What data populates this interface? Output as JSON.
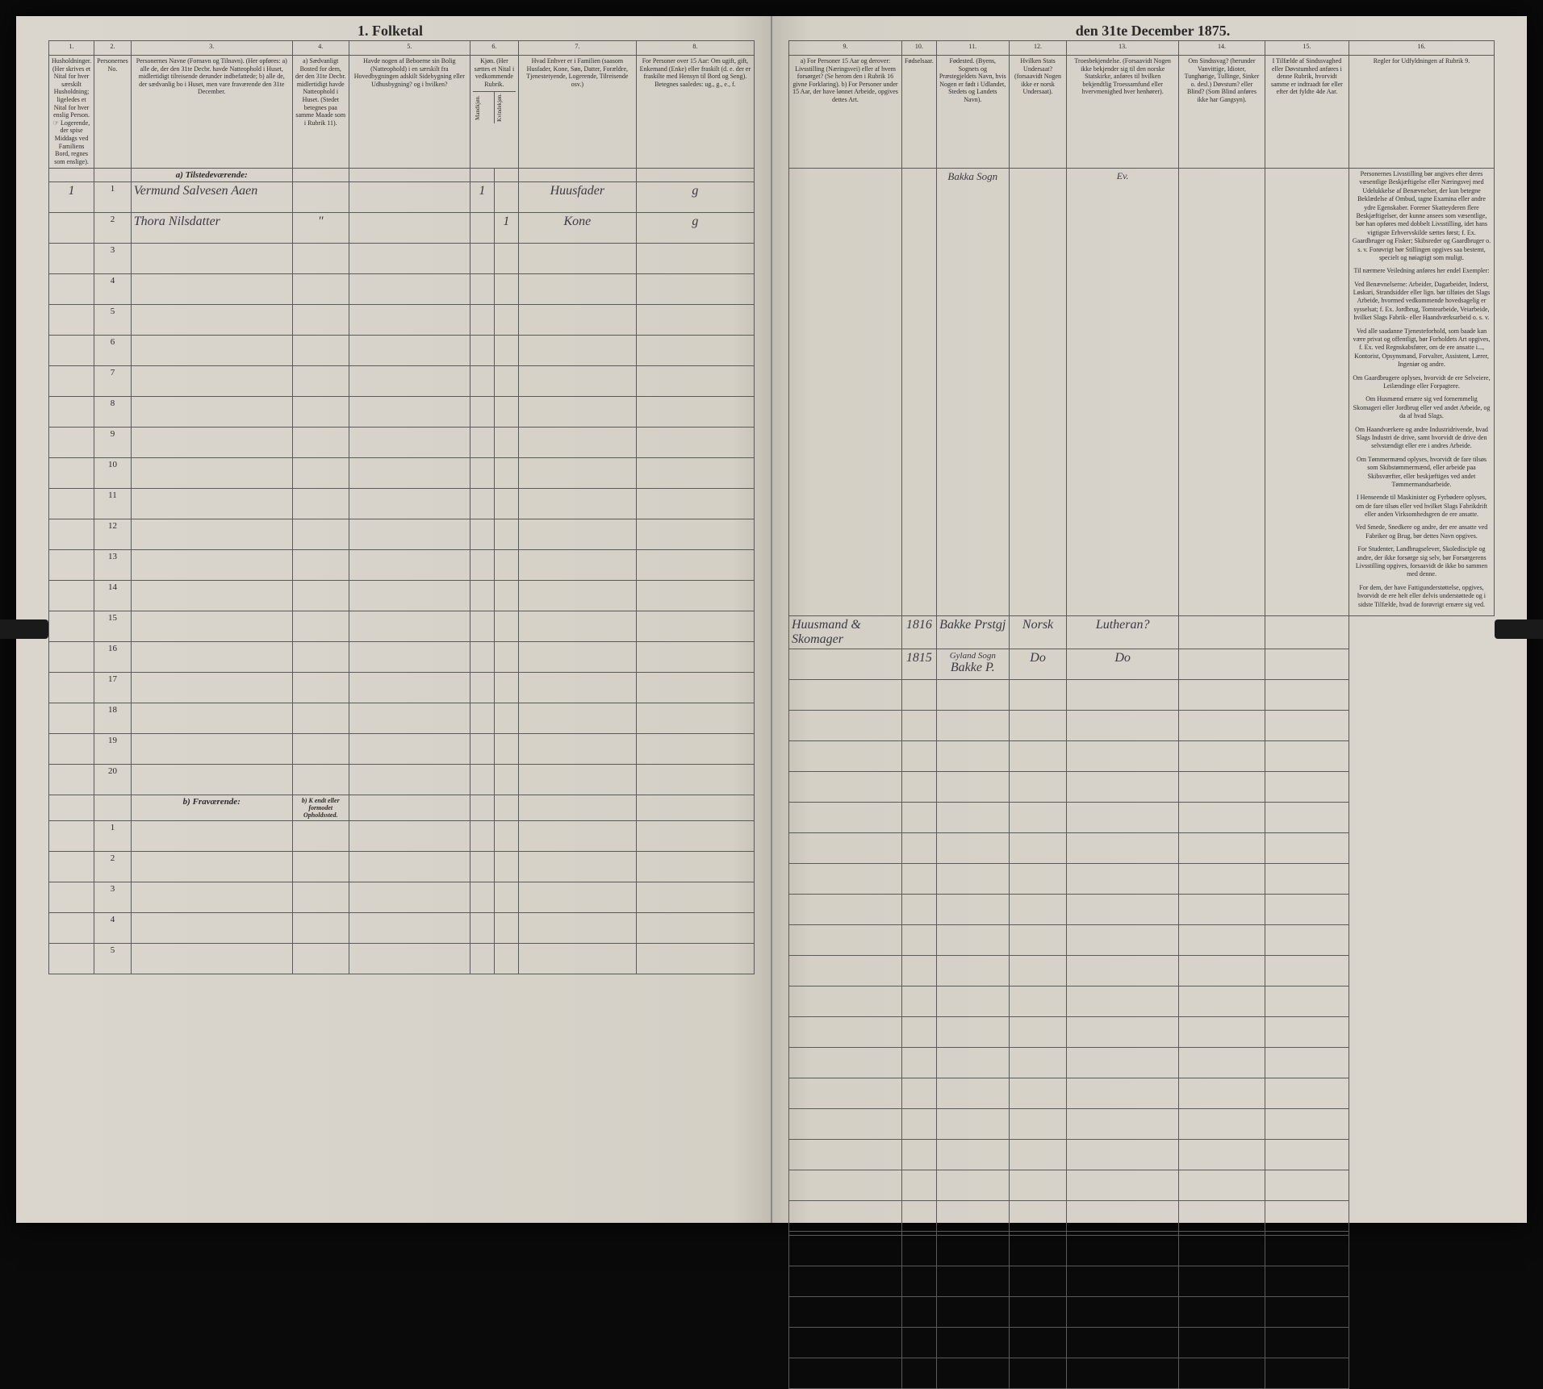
{
  "title": {
    "left": "1. Folketal",
    "right": "den 31te December 1875."
  },
  "columns_left": {
    "c1": {
      "num": "1.",
      "header": "Husholdninger.\n(Her skrives et Nital for hver særskilt Husholdning; ligeledes et Nital for hver enslig Person.\n☞ Logerende, der spise Middags ved Familiens Bord, regnes som enslige)."
    },
    "c2": {
      "num": "2.",
      "header": "Personernes No."
    },
    "c3": {
      "num": "3.",
      "header": "Personernes Navne (Fornavn og Tilnavn).\n(Her opføres:\na) alle de, der den 31te Decbr. havde Natteophold i Huset, midlertidigt tilreisende derunder indbefattede;\nb) alle de, der sædvanlig bo i Huset, men vare fraværende den 31te December."
    },
    "c4": {
      "num": "4.",
      "header": "a) Sædvanligt Bosted for dem, der den 31te Decbr. midlertidigt havde Natteophold i Huset.\n(Stedet betegnes paa samme Maade som i Rubrik 11)."
    },
    "c5": {
      "num": "5.",
      "header": "Havde nogen af Beboerne sin Bolig (Natteophold) i en særskilt fra Hovedbygningen adskilt Sidebygning eller Udhusbygning? og i hvilken?"
    },
    "c6": {
      "num": "6.",
      "header_top": "Kjøn.\n(Her sættes et Nital i vedkommende Rubrik.",
      "sub_a": "Mandkjøn.",
      "sub_b": "Kvindekjøn."
    },
    "c7": {
      "num": "7.",
      "header": "Hvad Enhver er i Familien\n(saasom Husfader, Kone, Søn, Datter, Forældre, Tjenestetyende, Logerende, Tilreisende osv.)"
    },
    "c8": {
      "num": "8.",
      "header": "For Personer over 15 Aar: Om ugift, gift, Enkemand (Enke) eller fraskilt (d. e. der er fraskilte med Hensyn til Bord og Seng).\nBetegnes saaledes: ug., g., e., f."
    }
  },
  "columns_right": {
    "c9": {
      "num": "9.",
      "header": "a) For Personer 15 Aar og derover: Livsstilling (Næringsvei) eller af hvem forsørget? (Se herom den i Rubrik 16 givne Forklaring).\nb) For Personer under 15 Aar, der have lønnet Arbeide, opgives dettes Art."
    },
    "c10": {
      "num": "10.",
      "header": "Fødselsaar."
    },
    "c11": {
      "num": "11.",
      "header": "Fødested.\n(Byens, Sognets og Præstegjeldets Navn, hvis Nogen er født i Udlandet, Stedets og Landets Navn)."
    },
    "c12": {
      "num": "12.",
      "header": "Hvilken Stats Undersaat?\n(forsaavidt Nogen ikke er norsk Undersaat)."
    },
    "c13": {
      "num": "13.",
      "header": "Troesbekjendelse.\n(Forsaavidt Nogen ikke bekjender sig til den norske Statskirke, anføres til hvilken bekjendtlig Troessamfund eller hvervmenighed hver henhører)."
    },
    "c14": {
      "num": "14.",
      "header": "Om Sindssvag? (herunder Vanvittige, Idioter, Tunghørige, Tullinge, Sinker o. desl.)\nDøvstum? eller Blind?\n(Som Blind anføres ikke har Gangsyn)."
    },
    "c15": {
      "num": "15.",
      "header": "I Tilfælde af Sindssvaghed eller Døvstumhed anføres i denne Rubrik, hvorvidt samme er indtraadt før eller efter det fyldte 4de Aar."
    },
    "c16": {
      "num": "16.",
      "header": "Regler for Udfyldningen\naf\nRubrik 9."
    }
  },
  "section_a": "a) Tilstedeværende:",
  "section_b": "b) Fraværende:",
  "section_b4": "b) K endt eller formodet Opholdssted.",
  "rows_a": [
    {
      "num": "1",
      "hh": "1",
      "name": "Vermund Salvesen Aaen",
      "c6a": "1",
      "c7": "Huusfader",
      "c8": "g",
      "c9": "Huusmand & Skomager",
      "c10": "1816",
      "c11_top": "Bakka Sogn",
      "c11": "Bakke Prstgj",
      "c12": "Norsk",
      "c13_top": "Ev.",
      "c13": "Lutheran?"
    },
    {
      "num": "2",
      "hh": "",
      "name": "Thora Nilsdatter",
      "c4": "\"",
      "c5": "",
      "c6b": "1",
      "c7": "Kone",
      "c8": "g",
      "c9": "",
      "c10": "1815",
      "c11_top": "Gyland Sogn",
      "c11": "Bakke P.",
      "c12": "Do",
      "c13": "Do"
    }
  ],
  "empty_a_rows": [
    "3",
    "4",
    "5",
    "6",
    "7",
    "8",
    "9",
    "10",
    "11",
    "12",
    "13",
    "14",
    "15",
    "16",
    "17",
    "18",
    "19",
    "20"
  ],
  "empty_b_rows": [
    "1",
    "2",
    "3",
    "4",
    "5"
  ],
  "rules": {
    "p1": "Personernes Livsstilling bør angives efter deres væsentlige Beskjæftigelse eller Næringsvej med Udelukkelse af Benævnelser, der kun betegne Beklædelse af Ombud, tagne Examina eller andre ydre Egenskaber. Forener Skatteyderen flere Beskjæftigelser, der kunne ansees som væsentlige, bør han opføres med dobbelt Livsstilling, idet hans vigtigste Erhvervskilde sættes først; f. Ex. Gaardbruger og Fisker; Skibsreder og Gaardbruger o. s. v. Forøvrigt bør Stillingen opgives saa bestemt, specielt og nøiagtigt som muligt.",
    "p2": "Til nærmere Veiledning anføres her endel Exempler:",
    "p3": "Ved Benævnelserne: Arbeider, Dagarbeider, Inderst, Løskari, Strandsidder eller lign. bør tilføies det Slags Arbeide, hvormed vedkommende hovedsagelig er sysselsat; f. Ex. Jordbrug, Tomtearbeide, Veiarbeide, hvilket Slags Fabrik- eller Haandværksarbeid o. s. v.",
    "p4": "Ved alle saadanne Tjenesteforhold, som baade kan være privat og offentligt, bør Forholdets Art opgives, f. Ex. ved Regnskabsfører, om de ere ansatte i..., Kontorist, Opsynsmand, Forvalter, Assistent, Lærer, Ingeniør og andre.",
    "p5": "Om Gaardbrugere oplyses, hvorvidt de ere Selveiere, Leilændinge eller Forpagtere.",
    "p6": "Om Husmænd ernære sig ved fornemmelig Skomageri eller Jordbrug eller ved andet Arbeide, og da af hvad Slags.",
    "p7": "Om Haandværkere og andre Industridrivende, hvad Slags Industri de drive, samt hvorvidt de drive den selvstændigt eller ere i andres Arbeide.",
    "p8": "Om Tømmermænd oplyses, hvorvidt de fare tilsøs som Skibstømmermænd, eller arbeide paa Skibsværfter, eller beskjæftiges ved andet Tømmermandsarbeide.",
    "p9": "I Henseende til Maskinister og Fyrbødere oplyses, om de fare tilsøs eller ved hvilket Slags Fabrikdrift eller anden Virksomhedsgren de ere ansatte.",
    "p10": "Ved Smede, Snedkere og andre, der ere ansatte ved Fabriker og Brug, bør dettes Navn opgives.",
    "p11": "For Studenter, Landbrugselever, Skoledisciple og andre, der ikke forsørge sig selv, bør Forsørgerens Livsstilling opgives, forsaavidt de ikke bo sammen med denne.",
    "p12": "For dem, der have Fattigunderstøttelse, opgives, hvorvidt de ere helt eller delvis understøttede og i sidste Tilfælde, hvad de forøvrigt ernære sig ved."
  },
  "colors": {
    "page_bg": "#d8d4cc",
    "border": "#5a5a5a",
    "text": "#2a2a2a",
    "handwriting": "#3a3a45",
    "outer_bg": "#0a0a0a"
  }
}
